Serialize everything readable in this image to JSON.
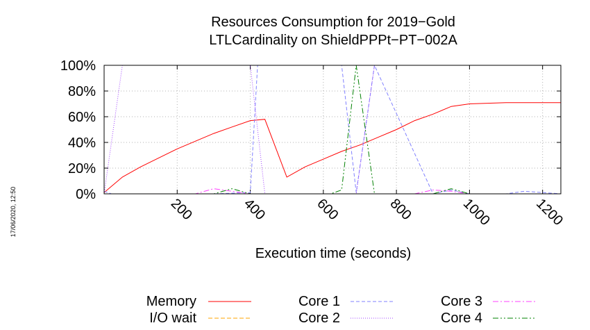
{
  "timestamp": "17/06/2020, 12:50",
  "chart_data": {
    "type": "line",
    "title": [
      "Resources Consumption for 2019−Gold",
      "LTLCardinality on ShieldPPPt−PT−002A"
    ],
    "xlabel": "Execution time (seconds)",
    "ylabel": "",
    "xlim": [
      0,
      1250
    ],
    "ylim": [
      0,
      100
    ],
    "x_ticks": [
      200,
      400,
      600,
      800,
      1000,
      1200
    ],
    "x_tick_labels": [
      "200",
      "400",
      "600",
      "800",
      "1000",
      "1200"
    ],
    "y_ticks": [
      0,
      20,
      40,
      60,
      80,
      100
    ],
    "y_tick_labels": [
      "0%",
      "20%",
      "40%",
      "60%",
      "80%",
      "100%"
    ],
    "grid": true,
    "legend_position": "bottom",
    "series": [
      {
        "name": "Memory",
        "color": "#ff0000",
        "dash": "",
        "x": [
          0,
          50,
          100,
          150,
          200,
          250,
          300,
          350,
          400,
          440,
          500,
          550,
          600,
          650,
          700,
          750,
          800,
          850,
          900,
          950,
          1000,
          1100,
          1200,
          1250
        ],
        "y": [
          1,
          13,
          21,
          28,
          35,
          41,
          47,
          52,
          57,
          58,
          13,
          21,
          27,
          33,
          38,
          44,
          50,
          57,
          62,
          68,
          70,
          71,
          71,
          71
        ]
      },
      {
        "name": "I/O wait",
        "color": "#ffa500",
        "dash": "6,3",
        "x": [
          0,
          1250
        ],
        "y": [
          0,
          0
        ]
      },
      {
        "name": "Core 1",
        "color": "#8080ff",
        "dash": "5,3",
        "x": [
          0,
          20,
          50,
          300,
          400,
          420,
          440,
          650,
          690,
          740,
          900,
          950,
          1000,
          1100,
          1150,
          1250
        ],
        "y": [
          2,
          0,
          0,
          0,
          1,
          100,
          100,
          100,
          1,
          100,
          0,
          3,
          0,
          0,
          2,
          0
        ]
      },
      {
        "name": "Core 2",
        "color": "#a040ff",
        "dash": "1,2",
        "x": [
          0,
          50,
          400,
          440,
          690,
          740,
          1250
        ],
        "y": [
          0,
          100,
          100,
          0,
          0,
          100,
          100
        ]
      },
      {
        "name": "Core 3",
        "color": "#ff40ff",
        "dash": "8,3,2,3",
        "x": [
          0,
          250,
          300,
          350,
          400,
          850,
          900,
          950,
          1000,
          1250
        ],
        "y": [
          0,
          0,
          4,
          2,
          0,
          0,
          3,
          2,
          0,
          0
        ]
      },
      {
        "name": "Core 4",
        "color": "#008000",
        "dash": "8,3,2,3,2,3",
        "x": [
          0,
          300,
          350,
          400,
          620,
          650,
          690,
          740,
          900,
          950,
          1000,
          1250
        ],
        "y": [
          0,
          0,
          4,
          0,
          0,
          3,
          100,
          0,
          0,
          4,
          0,
          0
        ]
      }
    ]
  }
}
